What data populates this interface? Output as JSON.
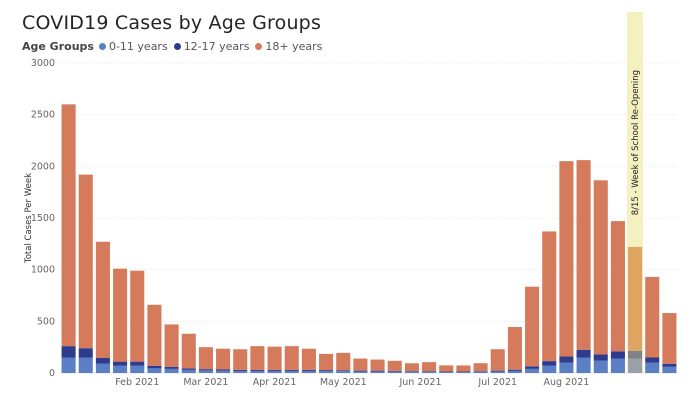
{
  "colors": {
    "age_0_11": "#5b7fc4",
    "age_12_17": "#2f3b8c",
    "age_18_plus": "#d67a5c",
    "highlight_band": "#f4f1c0",
    "highlight_0_11": "#9aa0a6",
    "highlight_12_17": "#7e8288",
    "highlight_18_plus": "#dfa461",
    "grid": "#e4e4e4"
  },
  "chart_data": {
    "type": "bar",
    "title": "COVID19 Cases by Age Groups",
    "legend_title": "Age Groups",
    "legend_placement": "top-left",
    "ylabel": "Total Cases Per Week",
    "ylim": [
      0,
      3000
    ],
    "yticks": [
      0,
      500,
      1000,
      1500,
      2000,
      2500,
      3000
    ],
    "grid": true,
    "xtick_labels": [
      {
        "label": "Feb 2021",
        "at_index": 4.5
      },
      {
        "label": "Mar 2021",
        "at_index": 8.5
      },
      {
        "label": "Apr 2021",
        "at_index": 12.5
      },
      {
        "label": "May 2021",
        "at_index": 16.5
      },
      {
        "label": "Jun 2021",
        "at_index": 21
      },
      {
        "label": "Jul 2021",
        "at_index": 25.5
      },
      {
        "label": "Aug 2021",
        "at_index": 29.5
      }
    ],
    "series": [
      {
        "name": "0-11 years",
        "values": [
          150,
          150,
          90,
          70,
          70,
          45,
          40,
          30,
          25,
          22,
          20,
          20,
          20,
          20,
          20,
          18,
          18,
          15,
          15,
          15,
          12,
          12,
          10,
          10,
          12,
          15,
          20,
          40,
          70,
          100,
          150,
          120,
          140,
          140,
          100,
          60
        ]
      },
      {
        "name": "12-17 years",
        "values": [
          110,
          90,
          55,
          40,
          40,
          25,
          20,
          15,
          12,
          12,
          10,
          10,
          10,
          10,
          10,
          10,
          8,
          8,
          8,
          6,
          6,
          6,
          5,
          5,
          6,
          8,
          12,
          25,
          45,
          60,
          75,
          60,
          70,
          75,
          50,
          30
        ]
      },
      {
        "name": "18+ years",
        "values": [
          2340,
          1680,
          1125,
          900,
          880,
          590,
          410,
          335,
          213,
          201,
          200,
          230,
          225,
          230,
          205,
          157,
          169,
          117,
          107,
          97,
          76,
          87,
          59,
          58,
          77,
          207,
          413,
          770,
          1255,
          1890,
          1835,
          1685,
          1260,
          1005,
          780,
          490
        ]
      }
    ],
    "totals": [
      2600,
      1920,
      1270,
      1010,
      990,
      660,
      470,
      380,
      250,
      235,
      230,
      260,
      255,
      260,
      235,
      185,
      195,
      140,
      130,
      118,
      94,
      105,
      74,
      73,
      95,
      230,
      445,
      835,
      1370,
      2050,
      2060,
      1865,
      1470,
      1220,
      930,
      580
    ],
    "highlighted_index": 33,
    "annotation": "8/15 - Week of School Re-Opening"
  }
}
